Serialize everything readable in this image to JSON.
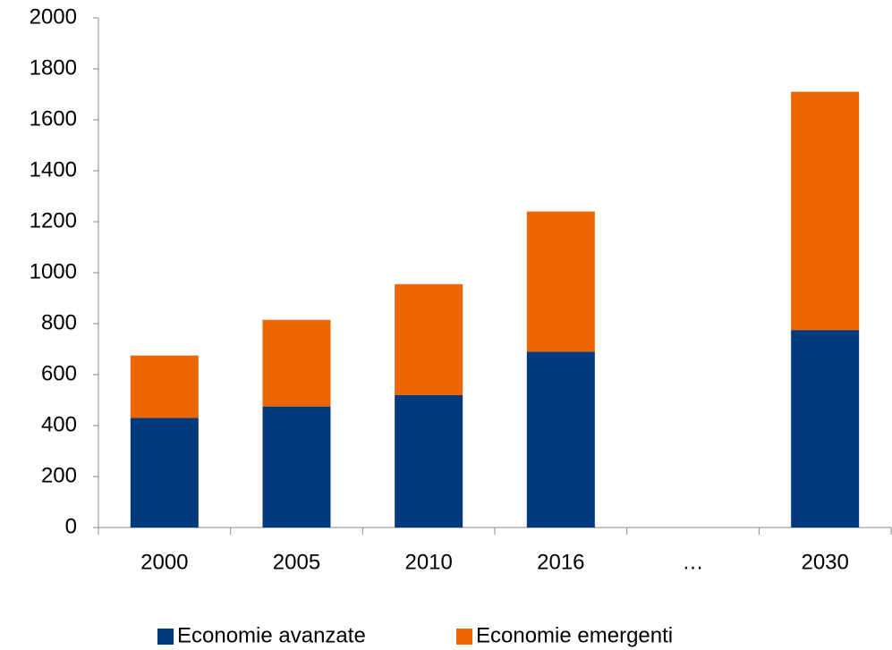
{
  "chart_data": {
    "type": "stacked_bar",
    "categories": [
      "2000",
      "2005",
      "2010",
      "2016",
      "…",
      "2030"
    ],
    "series": [
      {
        "name": "Economie avanzate",
        "color": "#003a7d",
        "values": [
          430,
          475,
          520,
          690,
          null,
          775
        ]
      },
      {
        "name": "Economie emergenti",
        "color": "#ec6500",
        "values": [
          245,
          340,
          435,
          550,
          null,
          935
        ]
      }
    ],
    "ylim": [
      0,
      2000
    ],
    "yticks": [
      0,
      200,
      400,
      600,
      800,
      1000,
      1200,
      1400,
      1600,
      1800,
      2000
    ],
    "grid": false,
    "legend": "bottom"
  }
}
